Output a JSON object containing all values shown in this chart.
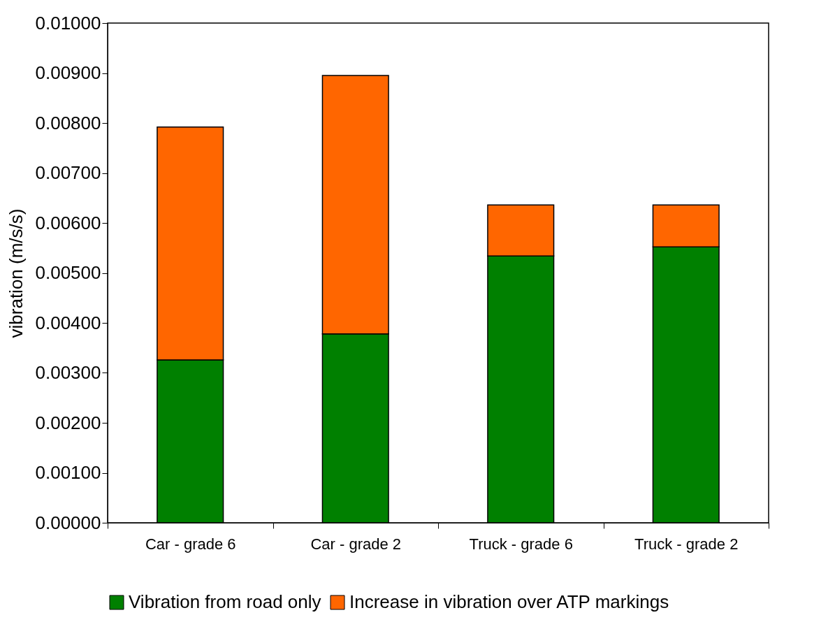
{
  "chart_data": {
    "type": "bar",
    "ylabel": "vibration (m/s/s)",
    "stacked": true,
    "categories": [
      "Car - grade 6",
      "Car - grade 2",
      "Truck - grade 6",
      "Truck - grade 2"
    ],
    "series": [
      {
        "name": "Vibration from road only",
        "color": "#008000",
        "values": [
          0.00326,
          0.00378,
          0.00534,
          0.00552
        ]
      },
      {
        "name": "Increase in vibration over ATP markings",
        "color": "#ff6600",
        "values": [
          0.00466,
          0.00517,
          0.00102,
          0.00084
        ]
      }
    ],
    "ylim": [
      0,
      0.01
    ],
    "yticks": [
      {
        "value": 0,
        "label": "0.00000"
      },
      {
        "value": 0.001,
        "label": "0.00100"
      },
      {
        "value": 0.002,
        "label": "0.00200"
      },
      {
        "value": 0.003,
        "label": "0.00300"
      },
      {
        "value": 0.004,
        "label": "0.00400"
      },
      {
        "value": 0.005,
        "label": "0.00500"
      },
      {
        "value": 0.006,
        "label": "0.00600"
      },
      {
        "value": 0.007,
        "label": "0.00700"
      },
      {
        "value": 0.008,
        "label": "0.00800"
      },
      {
        "value": 0.009,
        "label": "0.00900"
      },
      {
        "value": 0.01,
        "label": "0.01000"
      }
    ],
    "grid": false,
    "legend": "bottom"
  }
}
